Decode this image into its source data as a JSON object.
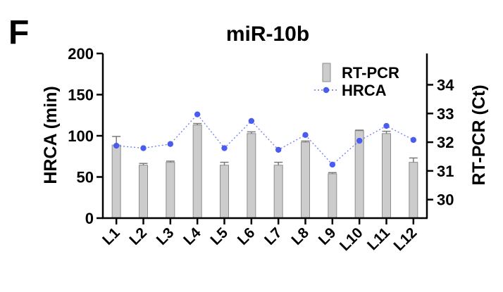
{
  "panel_letter": "F",
  "chart_data": {
    "type": "bar",
    "title": "miR-10b",
    "categories": [
      "L1",
      "L2",
      "L3",
      "L4",
      "L5",
      "L6",
      "L7",
      "L8",
      "L9",
      "L10",
      "L11",
      "L12"
    ],
    "series": [
      {
        "name": "RT-PCR",
        "type": "bar",
        "axis": "right",
        "values": [
          31.9,
          31.2,
          31.3,
          32.6,
          31.2,
          32.3,
          31.2,
          32.0,
          30.9,
          32.4,
          32.3,
          31.3
        ],
        "errors": [
          0.3,
          0.06,
          0.04,
          0.05,
          0.1,
          0.06,
          0.1,
          0.04,
          0.04,
          0.02,
          0.08,
          0.15
        ],
        "color": "#cccccc",
        "edge": "#8c8c8c"
      },
      {
        "name": "HRCA",
        "type": "line",
        "axis": "left",
        "values": [
          88,
          85,
          90,
          126,
          85,
          118,
          83,
          101,
          65,
          94,
          112,
          95
        ],
        "color": "#4a5cf0"
      }
    ],
    "ylabel": "HRCA (min)",
    "ylim": [
      0,
      200
    ],
    "yticks": [
      0,
      50,
      100,
      150,
      200
    ],
    "y2label": "RT-PCR (Ct)",
    "y2lim": [
      29.6,
      34.6
    ],
    "y2ticks": [
      30,
      31,
      32,
      33,
      34
    ],
    "legend": "top-right",
    "grid": false
  }
}
